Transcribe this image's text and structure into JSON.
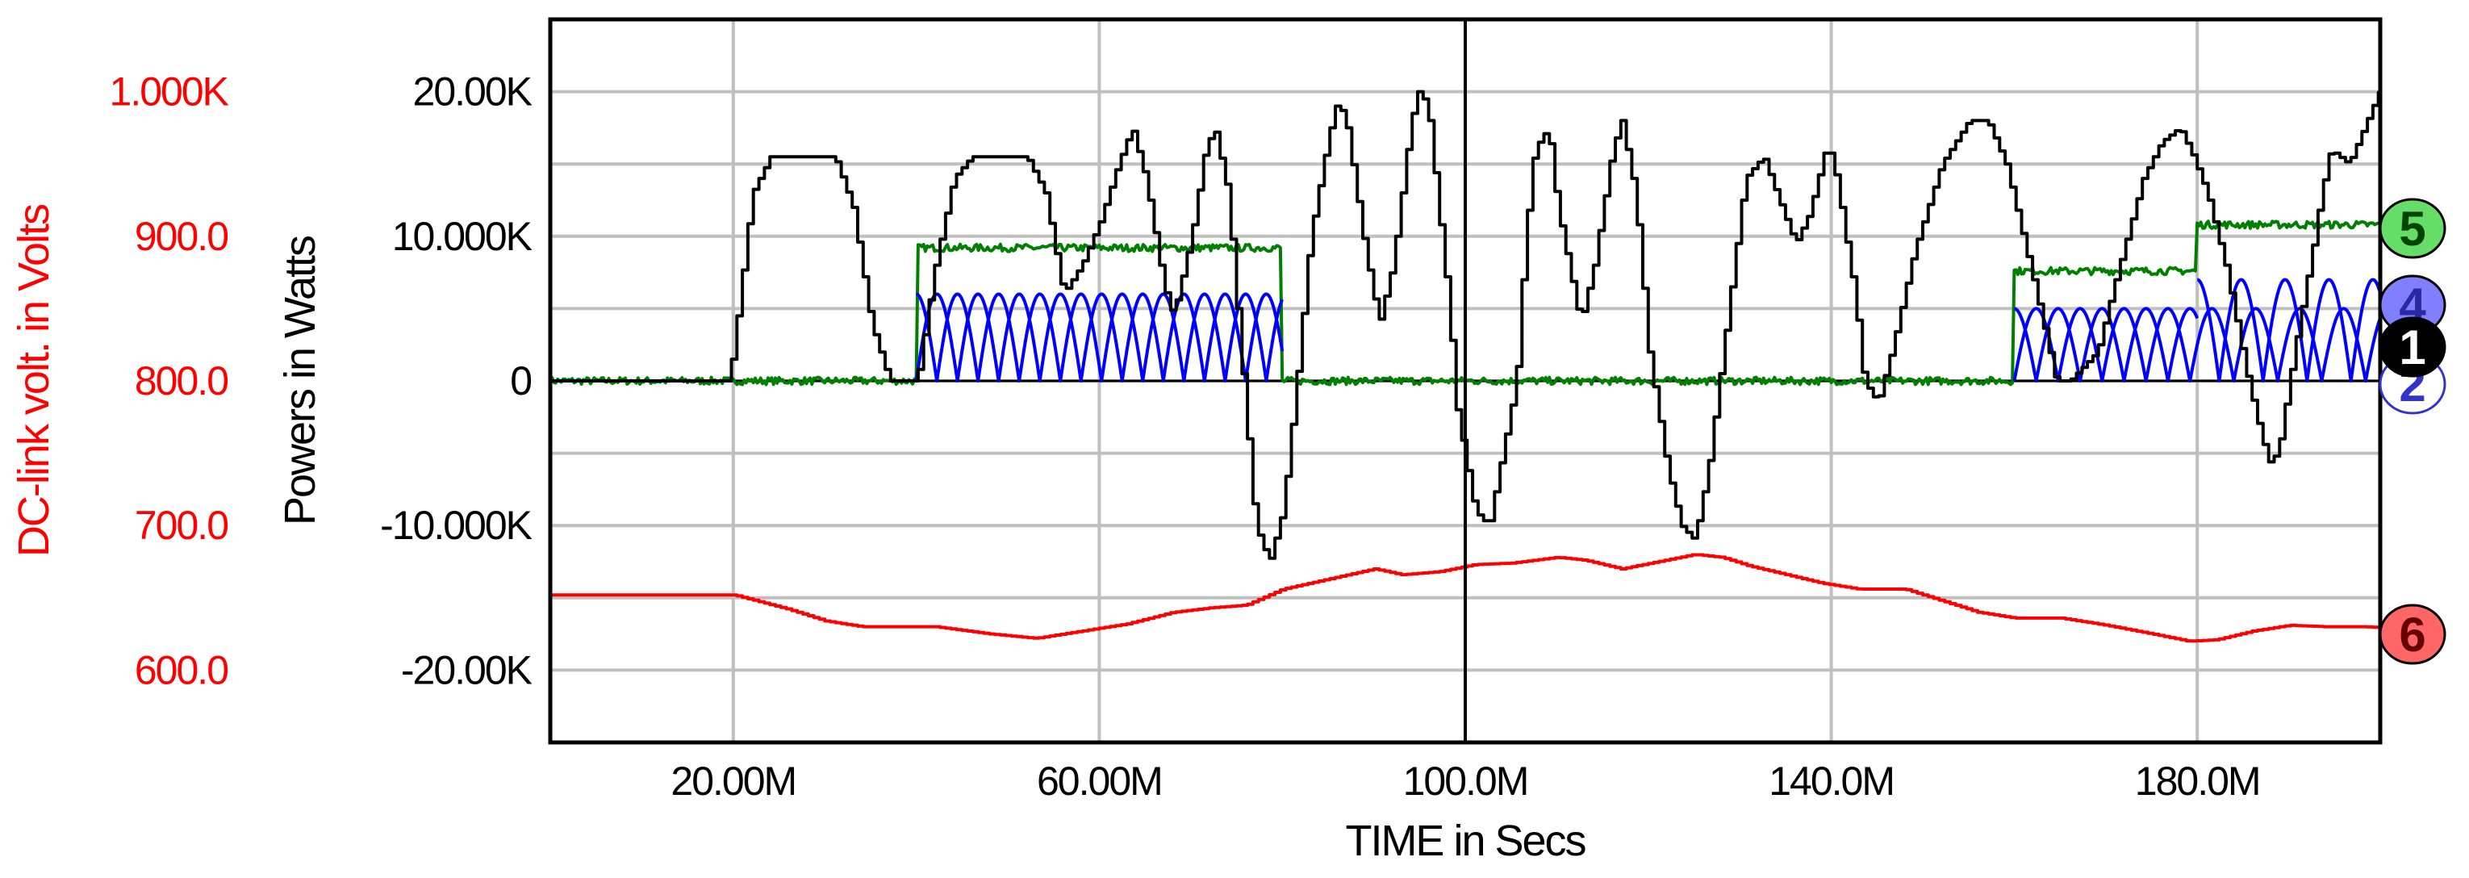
{
  "chart_data": {
    "type": "line",
    "xlabel": "TIME in Secs",
    "ylabel": "Powers in Watts",
    "y2label": "DC-link volt. in Volts",
    "xlim": [
      0,
      0.2
    ],
    "ylim": [
      -25000,
      25000
    ],
    "y2lim": [
      550,
      1050
    ],
    "grid": true,
    "cursor_x": 0.1,
    "x_ticks": [
      {
        "value": 0.02,
        "label": "20.00M"
      },
      {
        "value": 0.06,
        "label": "60.00M"
      },
      {
        "value": 0.1,
        "label": "100.0M"
      },
      {
        "value": 0.14,
        "label": "140.0M"
      },
      {
        "value": 0.18,
        "label": "180.0M"
      }
    ],
    "y_ticks": [
      {
        "value": 20000,
        "label": "20.00K"
      },
      {
        "value": 10000,
        "label": "10.000K"
      },
      {
        "value": 0,
        "label": "0"
      },
      {
        "value": -10000,
        "label": "-10.000K"
      },
      {
        "value": -20000,
        "label": "-20.00K"
      }
    ],
    "y2_ticks": [
      {
        "value": 1000,
        "label": "1.000K"
      },
      {
        "value": 900,
        "label": "900.0"
      },
      {
        "value": 800,
        "label": "800.0"
      },
      {
        "value": 700,
        "label": "700.0"
      },
      {
        "value": 600,
        "label": "600.0"
      }
    ],
    "series": [
      {
        "marker": "1",
        "color": "#000000",
        "axis": "left",
        "stepped": true,
        "points": [
          [
            0,
            0
          ],
          [
            0.0195,
            0
          ],
          [
            0.0205,
            5000
          ],
          [
            0.022,
            13000
          ],
          [
            0.024,
            15500
          ],
          [
            0.026,
            15500
          ],
          [
            0.031,
            15500
          ],
          [
            0.033,
            12000
          ],
          [
            0.035,
            4000
          ],
          [
            0.037,
            0
          ],
          [
            0.04,
            0
          ],
          [
            0.042,
            8000
          ],
          [
            0.044,
            14000
          ],
          [
            0.046,
            15500
          ],
          [
            0.052,
            15500
          ],
          [
            0.054,
            13000
          ],
          [
            0.056,
            6000
          ],
          [
            0.058,
            8000
          ],
          [
            0.06,
            11000
          ],
          [
            0.062,
            15000
          ],
          [
            0.0635,
            17500
          ],
          [
            0.065,
            14000
          ],
          [
            0.067,
            6500
          ],
          [
            0.068,
            4500
          ],
          [
            0.07,
            10000
          ],
          [
            0.0715,
            16000
          ],
          [
            0.0725,
            17500
          ],
          [
            0.074,
            13000
          ],
          [
            0.075,
            5000
          ],
          [
            0.077,
            -10000
          ],
          [
            0.0785,
            -12500
          ],
          [
            0.08,
            -9000
          ],
          [
            0.0815,
            0
          ],
          [
            0.083,
            10000
          ],
          [
            0.085,
            17000
          ],
          [
            0.086,
            19500
          ],
          [
            0.087,
            17500
          ],
          [
            0.089,
            9000
          ],
          [
            0.0905,
            4000
          ],
          [
            0.092,
            8000
          ],
          [
            0.094,
            18000
          ],
          [
            0.095,
            20500
          ],
          [
            0.096,
            18000
          ],
          [
            0.098,
            6000
          ],
          [
            0.099,
            -2000
          ],
          [
            0.101,
            -9000
          ],
          [
            0.1025,
            -10000
          ],
          [
            0.104,
            -5000
          ],
          [
            0.1055,
            0
          ],
          [
            0.1065,
            10000
          ],
          [
            0.1075,
            16000
          ],
          [
            0.109,
            17500
          ],
          [
            0.11,
            12000
          ],
          [
            0.1125,
            4000
          ],
          [
            0.114,
            8000
          ],
          [
            0.116,
            16000
          ],
          [
            0.117,
            18000
          ],
          [
            0.1185,
            13000
          ],
          [
            0.12,
            2000
          ],
          [
            0.122,
            -6000
          ],
          [
            0.1235,
            -10000
          ],
          [
            0.125,
            -11000
          ],
          [
            0.1265,
            -6000
          ],
          [
            0.1285,
            4000
          ],
          [
            0.1305,
            14000
          ],
          [
            0.1325,
            15500
          ],
          [
            0.1345,
            12000
          ],
          [
            0.136,
            9500
          ],
          [
            0.1375,
            11500
          ],
          [
            0.1395,
            16500
          ],
          [
            0.1405,
            14000
          ],
          [
            0.1425,
            6000
          ],
          [
            0.1435,
            0
          ],
          [
            0.145,
            -1500
          ],
          [
            0.1465,
            2000
          ],
          [
            0.149,
            9000
          ],
          [
            0.152,
            15000
          ],
          [
            0.155,
            18000
          ],
          [
            0.157,
            18000
          ],
          [
            0.159,
            15000
          ],
          [
            0.162,
            7000
          ],
          [
            0.1645,
            0
          ],
          [
            0.166,
            0
          ],
          [
            0.169,
            2000
          ],
          [
            0.171,
            7000
          ],
          [
            0.174,
            14000
          ],
          [
            0.176,
            16500
          ],
          [
            0.178,
            17500
          ],
          [
            0.1795,
            15500
          ],
          [
            0.181,
            13000
          ],
          [
            0.183,
            8000
          ],
          [
            0.1855,
            0
          ],
          [
            0.187,
            -4000
          ],
          [
            0.188,
            -6000
          ],
          [
            0.189,
            -4000
          ],
          [
            0.1905,
            2000
          ],
          [
            0.1925,
            9000
          ],
          [
            0.1935,
            13000
          ],
          [
            0.1945,
            16000
          ],
          [
            0.1965,
            15000
          ],
          [
            0.1985,
            18000
          ],
          [
            0.2005,
            21000
          ],
          [
            0.202,
            19000
          ],
          [
            0.2035,
            11000
          ],
          [
            0.2055,
            3000
          ],
          [
            0.2075,
            2000
          ],
          [
            0.209,
            500
          ],
          [
            0.21,
            0
          ]
        ]
      },
      {
        "marker": "2",
        "color": "#0000ff",
        "axis": "left",
        "ripple": "bumps",
        "segments": [
          {
            "x0": 0.04,
            "x1": 0.08,
            "amp": 6000,
            "period": 0.0045,
            "phase": 0
          },
          {
            "x0": 0.16,
            "x1": 0.21,
            "amp": 5000,
            "period": 0.0048,
            "phase": 0
          }
        ]
      },
      {
        "marker": "4",
        "color": "#0000ff",
        "axis": "left",
        "ripple": "bumps",
        "segments": [
          {
            "x0": 0.04,
            "x1": 0.08,
            "amp": 6000,
            "period": 0.0045,
            "phase": 0.5
          },
          {
            "x0": 0.16,
            "x1": 0.18,
            "amp": 5000,
            "period": 0.0048,
            "phase": 0.5
          },
          {
            "x0": 0.18,
            "x1": 0.21,
            "amp": 7000,
            "period": 0.0048,
            "phase": 0.5
          }
        ]
      },
      {
        "marker": "5",
        "color": "#008000",
        "axis": "left",
        "noise": 500,
        "levels": [
          [
            0,
            0.04,
            0
          ],
          [
            0.04,
            0.08,
            9200
          ],
          [
            0.08,
            0.16,
            0
          ],
          [
            0.16,
            0.18,
            7600
          ],
          [
            0.18,
            0.21,
            10800
          ]
        ]
      },
      {
        "marker": "6",
        "color": "#ff0000",
        "axis": "right",
        "stepped": true,
        "points": [
          [
            0,
            652
          ],
          [
            0.02,
            652
          ],
          [
            0.026,
            642
          ],
          [
            0.03,
            634
          ],
          [
            0.034,
            630
          ],
          [
            0.042,
            630
          ],
          [
            0.048,
            625
          ],
          [
            0.053,
            622
          ],
          [
            0.057,
            626
          ],
          [
            0.063,
            632
          ],
          [
            0.068,
            640
          ],
          [
            0.072,
            643
          ],
          [
            0.076,
            645
          ],
          [
            0.08,
            656
          ],
          [
            0.085,
            663
          ],
          [
            0.09,
            670
          ],
          [
            0.093,
            666
          ],
          [
            0.097,
            668
          ],
          [
            0.101,
            673
          ],
          [
            0.105,
            674
          ],
          [
            0.11,
            678
          ],
          [
            0.113,
            676
          ],
          [
            0.117,
            670
          ],
          [
            0.121,
            675
          ],
          [
            0.125,
            680
          ],
          [
            0.128,
            678
          ],
          [
            0.131,
            672
          ],
          [
            0.135,
            666
          ],
          [
            0.139,
            660
          ],
          [
            0.143,
            656
          ],
          [
            0.148,
            656
          ],
          [
            0.152,
            648
          ],
          [
            0.156,
            640
          ],
          [
            0.16,
            636
          ],
          [
            0.165,
            636
          ],
          [
            0.17,
            631
          ],
          [
            0.175,
            625
          ],
          [
            0.179,
            620
          ],
          [
            0.182,
            621
          ],
          [
            0.186,
            627
          ],
          [
            0.19,
            631
          ],
          [
            0.194,
            630
          ],
          [
            0.198,
            630
          ],
          [
            0.202,
            629
          ],
          [
            0.206,
            630
          ],
          [
            0.21,
            634
          ]
        ]
      }
    ]
  }
}
